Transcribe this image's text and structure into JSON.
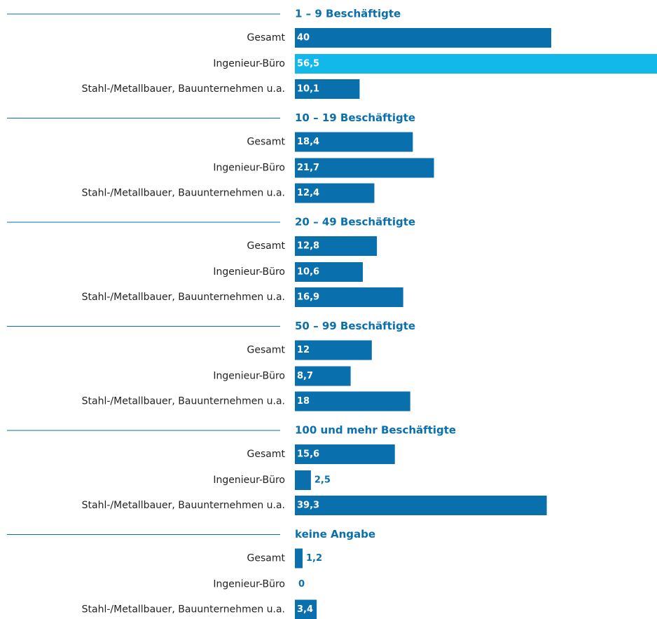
{
  "chart_data": {
    "type": "bar",
    "xlim": [
      0,
      56.5
    ],
    "groups": [
      {
        "title": "1 – 9 Beschäftigte",
        "categories": [
          "Gesamt",
          "Ingenieur-Büro",
          "Stahl-/Metallbauer, Bauunternehmen u.a."
        ],
        "values": [
          40,
          56.5,
          10.1
        ],
        "value_labels": [
          "40",
          "56,5",
          "10,1"
        ],
        "colors": [
          "#0a6fad",
          "#12b8ea",
          "#0a6fad"
        ]
      },
      {
        "title": "10 – 19 Beschäftigte",
        "categories": [
          "Gesamt",
          "Ingenieur-Büro",
          "Stahl-/Metallbauer, Bauunternehmen u.a."
        ],
        "values": [
          18.4,
          21.7,
          12.4
        ],
        "value_labels": [
          "18,4",
          "21,7",
          "12,4"
        ],
        "colors": [
          "#0a6fad",
          "#0a6fad",
          "#0a6fad"
        ]
      },
      {
        "title": "20 – 49 Beschäftigte",
        "categories": [
          "Gesamt",
          "Ingenieur-Büro",
          "Stahl-/Metallbauer, Bauunternehmen u.a."
        ],
        "values": [
          12.8,
          10.6,
          16.9
        ],
        "value_labels": [
          "12,8",
          "10,6",
          "16,9"
        ],
        "colors": [
          "#0a6fad",
          "#0a6fad",
          "#0a6fad"
        ]
      },
      {
        "title": "50 – 99 Beschäftigte",
        "categories": [
          "Gesamt",
          "Ingenieur-Büro",
          "Stahl-/Metallbauer, Bauunternehmen u.a."
        ],
        "values": [
          12,
          8.7,
          18
        ],
        "value_labels": [
          "12",
          "8,7",
          "18"
        ],
        "colors": [
          "#0a6fad",
          "#0a6fad",
          "#0a6fad"
        ]
      },
      {
        "title": "100 und mehr Beschäftigte",
        "categories": [
          "Gesamt",
          "Ingenieur-Büro",
          "Stahl-/Metallbauer, Bauunternehmen u.a."
        ],
        "values": [
          15.6,
          2.5,
          39.3
        ],
        "value_labels": [
          "15,6",
          "2,5",
          "39,3"
        ],
        "colors": [
          "#0a6fad",
          "#0a6fad",
          "#0a6fad"
        ]
      },
      {
        "title": "keine Angabe",
        "categories": [
          "Gesamt",
          "Ingenieur-Büro",
          "Stahl-/Metallbauer, Bauunternehmen u.a."
        ],
        "values": [
          1.2,
          0,
          3.4
        ],
        "value_labels": [
          "1,2",
          "0",
          "3,4"
        ],
        "colors": [
          "#0a6fad",
          "#0a6fad",
          "#0a6fad"
        ]
      }
    ]
  }
}
